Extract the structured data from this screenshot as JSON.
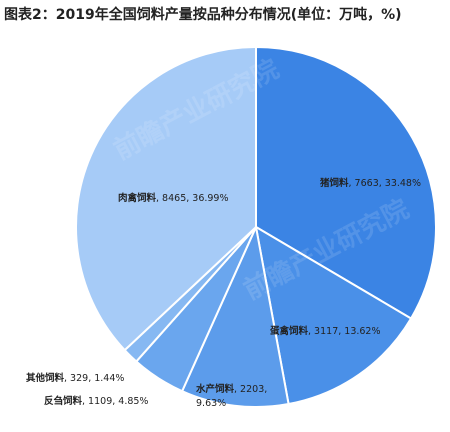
{
  "chart_data": {
    "type": "pie",
    "title": "图表2：2019年全国饲料产量按品种分布情况(单位：万吨，%)",
    "start_angle_deg": 90,
    "direction": "clockwise",
    "slices": [
      {
        "name": "猪饲料",
        "value": 7663,
        "percent": 33.48,
        "color": "#3b84e4",
        "value_label": "7663, 33.48%"
      },
      {
        "name": "蛋禽饲料",
        "value": 3117,
        "percent": 13.62,
        "color": "#4a90e8",
        "value_label": "3117, 13.62%"
      },
      {
        "name": "水产饲料",
        "value": 2203,
        "percent": 9.63,
        "color": "#5c9ceb",
        "value_label": "2203, 9.63%"
      },
      {
        "name": "反刍饲料",
        "value": 1109,
        "percent": 4.85,
        "color": "#6aa6ee",
        "value_label": "1109, 4.85%"
      },
      {
        "name": "其他饲料",
        "value": 329,
        "percent": 1.44,
        "color": "#86b8f2",
        "value_label": "329, 1.44%"
      },
      {
        "name": "肉禽饲料",
        "value": 8465,
        "percent": 36.99,
        "color": "#a6cbf7",
        "value_label": "8465, 36.99%"
      }
    ],
    "watermark": "前瞻产业研究院"
  }
}
